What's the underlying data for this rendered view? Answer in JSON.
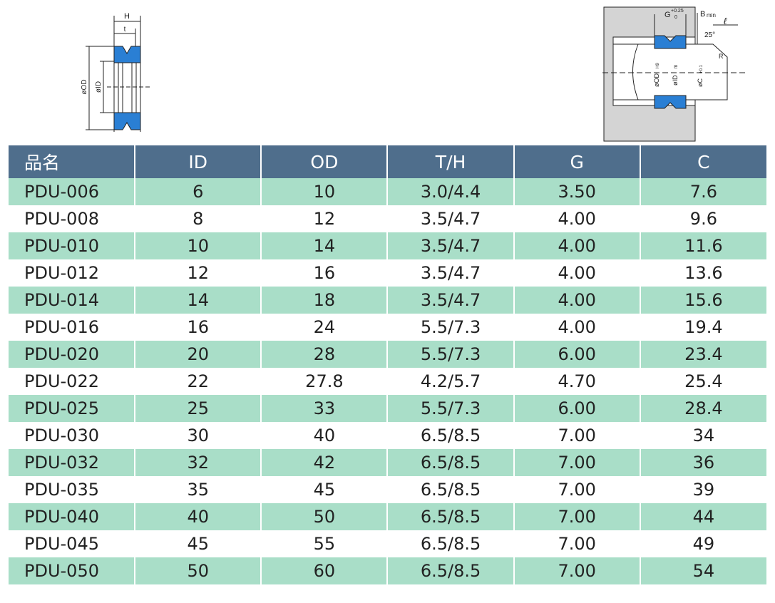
{
  "left_diagram": {
    "labels": {
      "H": "H",
      "t": "t",
      "od": "øOD",
      "id": "øID"
    }
  },
  "right_diagram": {
    "labels": {
      "g": "G",
      "g_upper": "+0.25",
      "g_lower": "0",
      "b": "B",
      "b_sub": "min",
      "l": "ℓ",
      "angle": "25°",
      "r": "R",
      "od": "øOD",
      "od_tol": "H9",
      "id": "øID",
      "id_tol": "f8",
      "c": "øC",
      "c_tol": "+0.1"
    }
  },
  "table": {
    "header": [
      "品名",
      "ID",
      "OD",
      "T/H",
      "G",
      "C"
    ],
    "rows": [
      [
        "PDU-006",
        "6",
        "10",
        "3.0/4.4",
        "3.50",
        "7.6"
      ],
      [
        "PDU-008",
        "8",
        "12",
        "3.5/4.7",
        "4.00",
        "9.6"
      ],
      [
        "PDU-010",
        "10",
        "14",
        "3.5/4.7",
        "4.00",
        "11.6"
      ],
      [
        "PDU-012",
        "12",
        "16",
        "3.5/4.7",
        "4.00",
        "13.6"
      ],
      [
        "PDU-014",
        "14",
        "18",
        "3.5/4.7",
        "4.00",
        "15.6"
      ],
      [
        "PDU-016",
        "16",
        "24",
        "5.5/7.3",
        "4.00",
        "19.4"
      ],
      [
        "PDU-020",
        "20",
        "28",
        "5.5/7.3",
        "6.00",
        "23.4"
      ],
      [
        "PDU-022",
        "22",
        "27.8",
        "4.2/5.7",
        "4.70",
        "25.4"
      ],
      [
        "PDU-025",
        "25",
        "33",
        "5.5/7.3",
        "6.00",
        "28.4"
      ],
      [
        "PDU-030",
        "30",
        "40",
        "6.5/8.5",
        "7.00",
        "34"
      ],
      [
        "PDU-032",
        "32",
        "42",
        "6.5/8.5",
        "7.00",
        "36"
      ],
      [
        "PDU-035",
        "35",
        "45",
        "6.5/8.5",
        "7.00",
        "39"
      ],
      [
        "PDU-040",
        "40",
        "50",
        "6.5/8.5",
        "7.00",
        "44"
      ],
      [
        "PDU-045",
        "45",
        "55",
        "6.5/8.5",
        "7.00",
        "49"
      ],
      [
        "PDU-050",
        "50",
        "60",
        "6.5/8.5",
        "7.00",
        "54"
      ]
    ]
  }
}
